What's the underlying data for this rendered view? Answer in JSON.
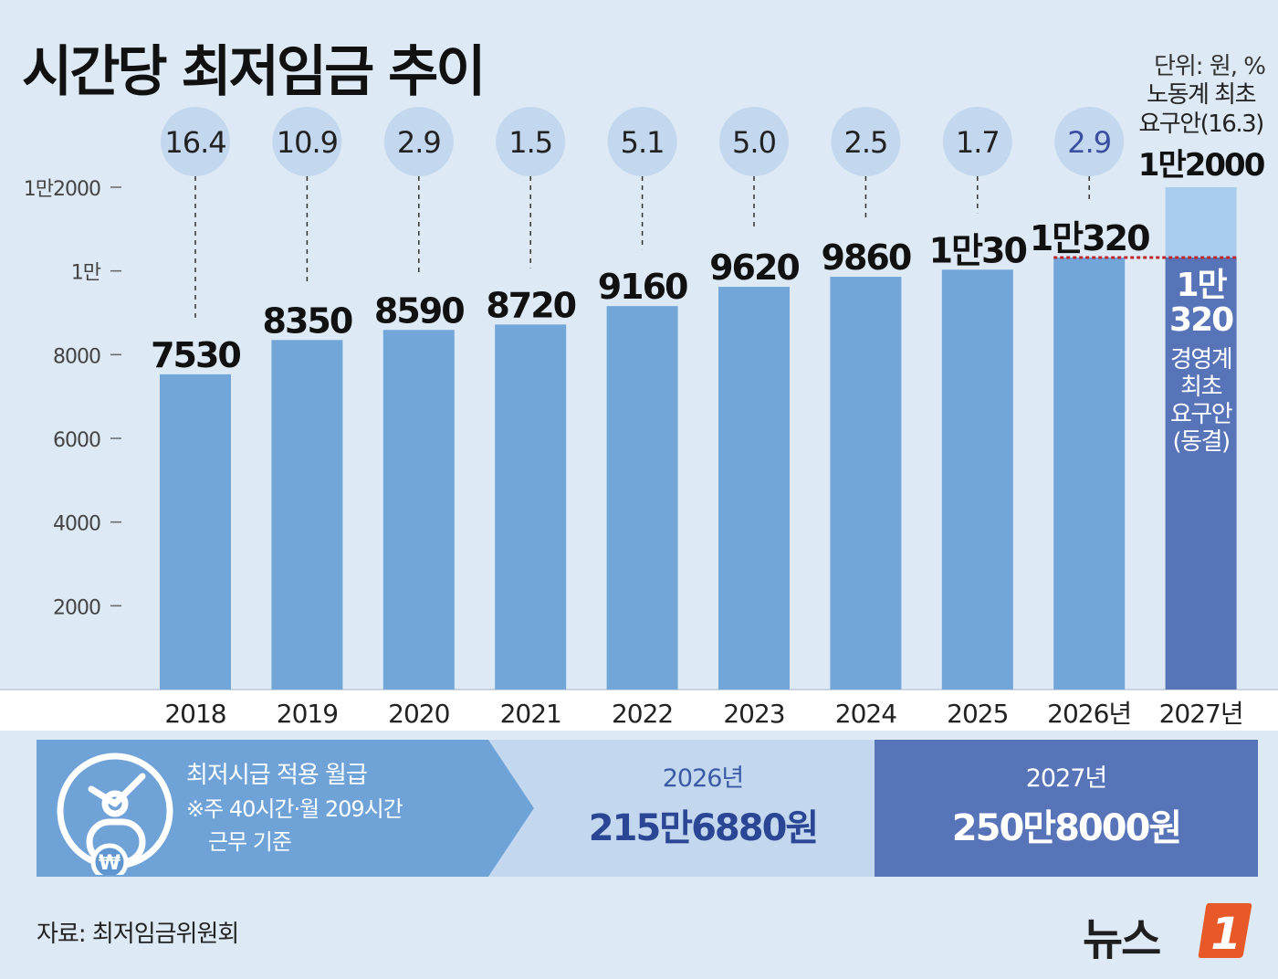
{
  "title": "시간당 최저임금 추이",
  "unit": "단위: 원, %",
  "chart_data": {
    "type": "bar",
    "categories": [
      "2018",
      "2019",
      "2020",
      "2021",
      "2022",
      "2023",
      "2024",
      "2025",
      "2026년",
      "2027년"
    ],
    "values": [
      7530,
      8350,
      8590,
      8720,
      9160,
      9620,
      9860,
      10030,
      10320,
      12000
    ],
    "value_labels": [
      "7530",
      "8350",
      "8590",
      "8720",
      "9160",
      "9620",
      "9860",
      "1만30",
      "1만320",
      ""
    ],
    "growth_rates": [
      "16.4",
      "10.9",
      "2.9",
      "1.5",
      "5.1",
      "5.0",
      "2.5",
      "1.7",
      "2.9"
    ],
    "ylim": [
      0,
      12000
    ],
    "yticks": [
      2000,
      4000,
      6000,
      8000,
      10000,
      12000
    ],
    "ytick_labels": [
      "2000",
      "4000",
      "6000",
      "8000",
      "1만",
      "1만2000"
    ],
    "labor_proposal": {
      "label": "노동계 최초\n요구안(16.3)",
      "value": 12000,
      "value_label": "1만2000"
    },
    "business_proposal": {
      "value": 10320,
      "value_label": "1만\n320",
      "label": "경영계\n최초\n요구안\n(동결)"
    },
    "colors": {
      "bar": "#72a6d9",
      "bar_2027_upper": "#a9cdee",
      "bar_2027_lower": "#5874b8",
      "circle": "#c3d7ee",
      "dashed_red": "#c0282e",
      "growth_2026": "#3a4fa0"
    }
  },
  "monthly": {
    "title": "최저시급 적용 월급",
    "note1": "※주 40시간·월 209시간",
    "note2": "근무 기준",
    "year_2026": "2026년",
    "wage_2026": "215만6880원",
    "year_2027": "2027년",
    "wage_2027": "250만8000원"
  },
  "source": "자료: 최저임금위원회",
  "logo": {
    "text": "뉴스",
    "mark": "1"
  }
}
